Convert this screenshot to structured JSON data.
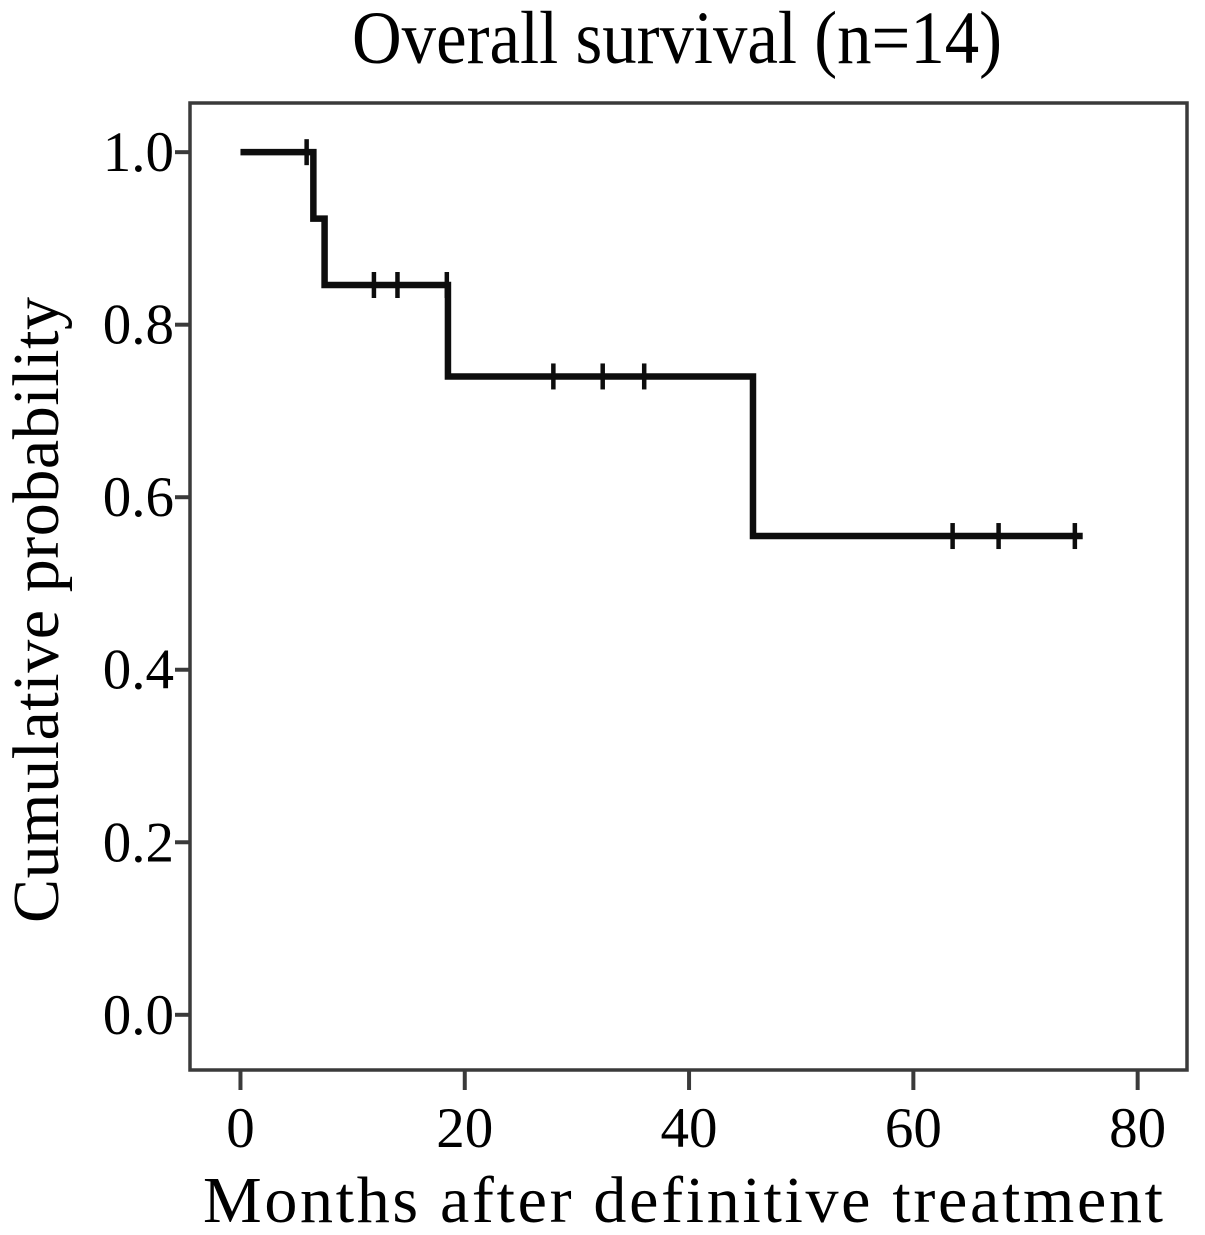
{
  "chart_data": {
    "type": "line",
    "subtype": "kaplan_meier_step",
    "title": "Overall survival (n=14)",
    "xlabel": "Months after definitive treatment",
    "ylabel": "Cumulative probability",
    "n": 14,
    "xlim": [
      -4.5,
      84.4
    ],
    "ylim": [
      -0.064,
      1.057
    ],
    "x_ticks": [
      0,
      20,
      40,
      60,
      80
    ],
    "x_tick_labels": [
      "0",
      "20",
      "40",
      "60",
      "80"
    ],
    "y_ticks": [
      0.0,
      0.2,
      0.4,
      0.6,
      0.8,
      1.0
    ],
    "y_tick_labels": [
      "0.0",
      "0.2",
      "0.4",
      "0.6",
      "0.8",
      "1.0"
    ],
    "grid": false,
    "legend": "none",
    "background": "#ffffff",
    "frame_color": "#3a3a3a",
    "curve_color": "#0d0d0d",
    "text_color": "#000000",
    "series": [
      {
        "name": "Overall survival",
        "steps": [
          {
            "x_start": 0.0,
            "x_end": 6.5,
            "y": 1.0
          },
          {
            "x_start": 6.5,
            "x_end": 7.5,
            "y": 0.923
          },
          {
            "x_start": 7.5,
            "x_end": 18.5,
            "y": 0.846
          },
          {
            "x_start": 18.5,
            "x_end": 45.7,
            "y": 0.74
          },
          {
            "x_start": 45.7,
            "x_end": 75.1,
            "y": 0.555
          }
        ],
        "censor_marks": [
          {
            "x": 5.9,
            "y": 1.0
          },
          {
            "x": 11.9,
            "y": 0.846
          },
          {
            "x": 14.0,
            "y": 0.846
          },
          {
            "x": 18.4,
            "y": 0.846
          },
          {
            "x": 27.9,
            "y": 0.74
          },
          {
            "x": 32.3,
            "y": 0.74
          },
          {
            "x": 36.0,
            "y": 0.74
          },
          {
            "x": 63.5,
            "y": 0.555
          },
          {
            "x": 67.6,
            "y": 0.555
          },
          {
            "x": 74.4,
            "y": 0.555
          }
        ]
      }
    ]
  }
}
